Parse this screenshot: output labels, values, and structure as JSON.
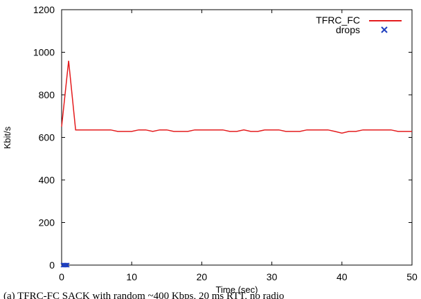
{
  "chart_data": {
    "type": "line",
    "title": "",
    "xlabel": "Time (sec)",
    "ylabel": "Kbit/s",
    "xlim": [
      0,
      50
    ],
    "ylim": [
      0,
      1200
    ],
    "xticks": [
      0,
      10,
      20,
      30,
      40,
      50
    ],
    "yticks": [
      0,
      200,
      400,
      600,
      800,
      1000,
      1200
    ],
    "grid": false,
    "legend": "top-right",
    "series": [
      {
        "name": "TFRC_FC",
        "kind": "line",
        "color": "#e41a1c",
        "x": [
          0,
          1,
          2,
          3,
          4,
          5,
          6,
          7,
          8,
          9,
          10,
          11,
          12,
          13,
          14,
          15,
          16,
          17,
          18,
          19,
          20,
          21,
          22,
          23,
          24,
          25,
          26,
          27,
          28,
          29,
          30,
          31,
          32,
          33,
          34,
          35,
          36,
          37,
          38,
          39,
          40,
          41,
          42,
          43,
          44,
          45,
          46,
          47,
          48,
          49,
          50
        ],
        "y": [
          650,
          960,
          635,
          635,
          635,
          635,
          635,
          635,
          628,
          628,
          628,
          635,
          635,
          628,
          635,
          635,
          628,
          628,
          628,
          635,
          635,
          635,
          635,
          635,
          628,
          628,
          635,
          628,
          628,
          635,
          635,
          635,
          628,
          628,
          628,
          635,
          635,
          635,
          635,
          628,
          620,
          628,
          628,
          635,
          635,
          635,
          635,
          635,
          628,
          628,
          628
        ]
      },
      {
        "name": "drops",
        "kind": "scatter",
        "marker": "x",
        "color": "#1f3fbf",
        "x": [
          0.2,
          0.35,
          0.5,
          0.65,
          0.8
        ],
        "y": [
          0,
          0,
          0,
          0,
          0
        ]
      }
    ],
    "caption": "(a) TFRC-FC SACK with random ~400 Kbps, 20 ms RTT, no radio"
  }
}
